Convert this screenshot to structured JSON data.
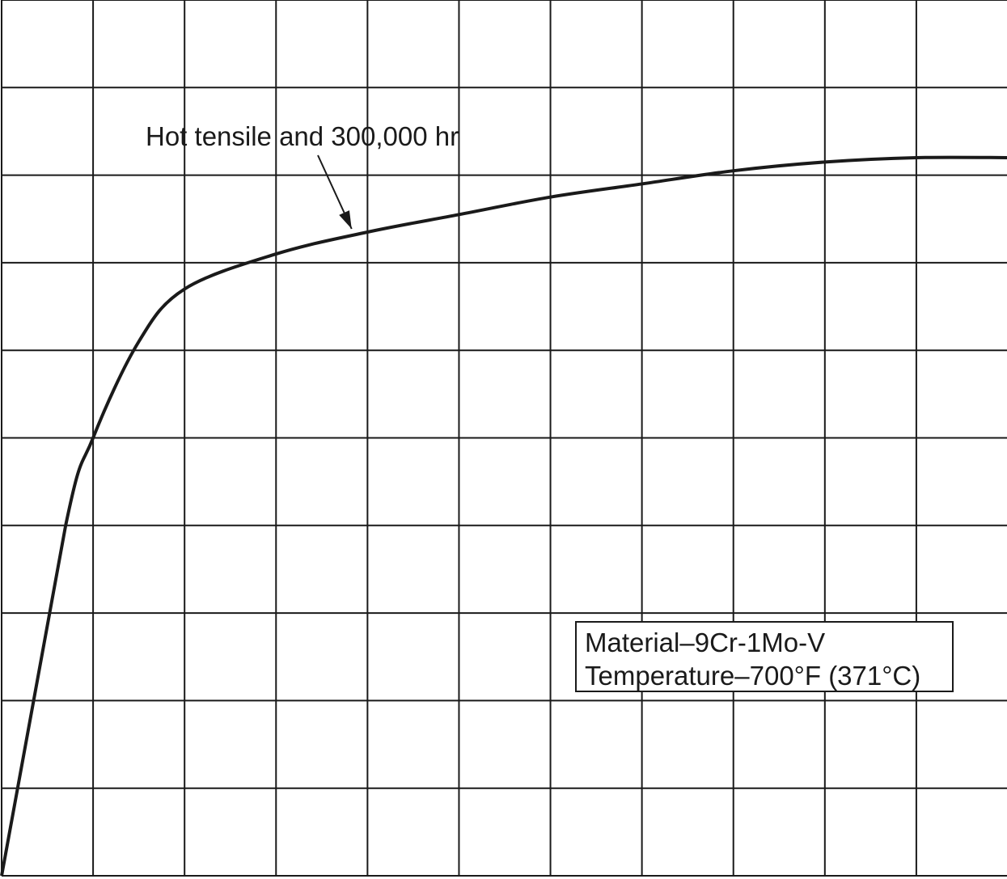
{
  "chart_data": {
    "type": "line",
    "title": "",
    "xlabel": "",
    "ylabel": "",
    "xlim": [
      0,
      11
    ],
    "ylim": [
      0,
      10
    ],
    "grid": true,
    "series": [
      {
        "x": [
          0,
          0.7,
          1.0,
          1.5,
          2.0,
          3.0,
          4.0,
          5.0,
          6.0,
          7.0,
          8.0,
          9.0,
          10.0,
          11.0
        ],
        "y": [
          0,
          4.0,
          5.0,
          6.1,
          6.7,
          7.1,
          7.35,
          7.55,
          7.75,
          7.9,
          8.05,
          8.15,
          8.2,
          8.2
        ]
      }
    ],
    "annotations": [
      {
        "text": "Hot tensile and 300,000 hr",
        "x": 3.8,
        "y": 7.35
      }
    ],
    "legend_lines": [
      "Material–9Cr-1Mo-V",
      "Temperature–700°F (371°C)"
    ]
  },
  "colors": {
    "line": "#1a1a1a",
    "grid": "#1a1a1a"
  }
}
